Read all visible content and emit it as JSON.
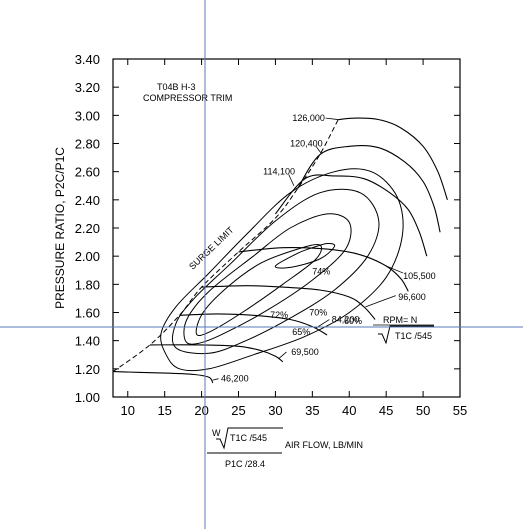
{
  "chart_data": {
    "type": "compressor_map",
    "title_lines": [
      "T04B  H-3",
      "COMPRESSOR TRIM"
    ],
    "ylabel": "PRESSURE RATIO, P2C/P1C",
    "xlabel_text": "AIR FLOW, LB/MIN",
    "xlabel_formula": {
      "numerator": "W √T1C /545",
      "denominator": "P1C /28.4"
    },
    "xlim": [
      8,
      55
    ],
    "ylim": [
      1.0,
      3.4
    ],
    "x_ticks": [
      10,
      15,
      20,
      25,
      30,
      35,
      40,
      45,
      50,
      55
    ],
    "y_ticks": [
      "1.00",
      "1.20",
      "1.40",
      "1.60",
      "1.80",
      "2.00",
      "2.20",
      "2.40",
      "2.60",
      "2.80",
      "3.00",
      "3.20",
      "3.40"
    ],
    "rpm_legend": "RPM= N",
    "rpm_legend_den": "√T1C /545",
    "surge_limit_label": "SURGE LIMIT",
    "surge_line": [
      [
        8,
        1.18
      ],
      [
        13,
        1.37
      ],
      [
        17,
        1.58
      ],
      [
        20,
        1.78
      ],
      [
        25,
        2.03
      ],
      [
        30,
        2.27
      ],
      [
        33,
        2.48
      ],
      [
        36,
        2.72
      ],
      [
        38.5,
        2.97
      ]
    ],
    "speed_lines": [
      {
        "label": "46,200",
        "points": [
          [
            8,
            1.18
          ],
          [
            15,
            1.17
          ],
          [
            19,
            1.16
          ],
          [
            21,
            1.14
          ],
          [
            21.5,
            1.1
          ]
        ]
      },
      {
        "label": "69,500",
        "points": [
          [
            13,
            1.37
          ],
          [
            20,
            1.37
          ],
          [
            25,
            1.36
          ],
          [
            28,
            1.33
          ],
          [
            30,
            1.29
          ],
          [
            31,
            1.25
          ]
        ]
      },
      {
        "label": "84,200",
        "points": [
          [
            17,
            1.58
          ],
          [
            22,
            1.59
          ],
          [
            27,
            1.58
          ],
          [
            32,
            1.55
          ],
          [
            35,
            1.5
          ],
          [
            37,
            1.44
          ]
        ]
      },
      {
        "label": "96,600",
        "points": [
          [
            20,
            1.78
          ],
          [
            26,
            1.79
          ],
          [
            31,
            1.78
          ],
          [
            36,
            1.76
          ],
          [
            40,
            1.71
          ],
          [
            42,
            1.64
          ],
          [
            43.5,
            1.55
          ]
        ]
      },
      {
        "label": "105,500",
        "points": [
          [
            25,
            2.03
          ],
          [
            31,
            2.06
          ],
          [
            37,
            2.05
          ],
          [
            41.5,
            2.01
          ],
          [
            45,
            1.93
          ],
          [
            47,
            1.84
          ],
          [
            48,
            1.75
          ]
        ]
      },
      {
        "label": "114,100",
        "points": [
          [
            30,
            2.3
          ],
          [
            34,
            2.55
          ],
          [
            38,
            2.57
          ],
          [
            42,
            2.55
          ],
          [
            45.5,
            2.45
          ],
          [
            48,
            2.33
          ],
          [
            49.5,
            2.17
          ],
          [
            50.5,
            2.0
          ]
        ]
      },
      {
        "label": "120,400",
        "points": [
          [
            33,
            2.48
          ],
          [
            36,
            2.72
          ],
          [
            40,
            2.78
          ],
          [
            44,
            2.77
          ],
          [
            47.5,
            2.67
          ],
          [
            50,
            2.53
          ],
          [
            51.5,
            2.35
          ],
          [
            52.3,
            2.17
          ]
        ]
      },
      {
        "label": "126,000",
        "points": [
          [
            38.5,
            2.97
          ],
          [
            41,
            2.98
          ],
          [
            44,
            2.97
          ],
          [
            47,
            2.91
          ],
          [
            50,
            2.78
          ],
          [
            52,
            2.6
          ],
          [
            53.3,
            2.4
          ]
        ]
      }
    ],
    "efficiency_islands": [
      {
        "label": "60%",
        "points": [
          [
            15.2,
            1.3
          ],
          [
            14.5,
            1.45
          ],
          [
            16.5,
            1.64
          ],
          [
            21,
            1.88
          ],
          [
            26,
            2.15
          ],
          [
            32,
            2.45
          ],
          [
            38,
            2.6
          ],
          [
            43,
            2.6
          ],
          [
            46.5,
            2.42
          ],
          [
            47.2,
            2.15
          ],
          [
            45,
            1.85
          ],
          [
            40,
            1.6
          ],
          [
            34,
            1.43
          ],
          [
            27,
            1.3
          ],
          [
            21,
            1.2
          ],
          [
            17,
            1.2
          ]
        ]
      },
      {
        "label": "65%",
        "points": [
          [
            16.5,
            1.35
          ],
          [
            16.5,
            1.52
          ],
          [
            19,
            1.7
          ],
          [
            24,
            1.95
          ],
          [
            30,
            2.25
          ],
          [
            36,
            2.45
          ],
          [
            41.5,
            2.45
          ],
          [
            44,
            2.25
          ],
          [
            42.5,
            2.0
          ],
          [
            38,
            1.76
          ],
          [
            32,
            1.56
          ],
          [
            26,
            1.4
          ],
          [
            21,
            1.31
          ]
        ]
      },
      {
        "label": "70%",
        "points": [
          [
            17.8,
            1.4
          ],
          [
            18,
            1.55
          ],
          [
            21,
            1.75
          ],
          [
            27,
            2.0
          ],
          [
            32,
            2.2
          ],
          [
            37,
            2.3
          ],
          [
            40,
            2.24
          ],
          [
            39.5,
            2.05
          ],
          [
            35,
            1.83
          ],
          [
            29,
            1.62
          ],
          [
            23,
            1.45
          ],
          [
            19.5,
            1.38
          ]
        ]
      },
      {
        "label": "72%",
        "points": [
          [
            19.3,
            1.45
          ],
          [
            20.2,
            1.6
          ],
          [
            23.5,
            1.78
          ],
          [
            28,
            1.95
          ],
          [
            33,
            2.05
          ],
          [
            36,
            2.08
          ],
          [
            35.5,
            1.98
          ],
          [
            31,
            1.8
          ],
          [
            25.5,
            1.6
          ],
          [
            21,
            1.46
          ]
        ]
      },
      {
        "label": "74%",
        "points": [
          [
            30,
            1.93
          ],
          [
            33,
            2.02
          ],
          [
            35,
            2.06
          ],
          [
            37,
            2.09
          ],
          [
            38,
            2.07
          ],
          [
            36,
            1.98
          ],
          [
            32,
            1.92
          ]
        ]
      }
    ]
  }
}
